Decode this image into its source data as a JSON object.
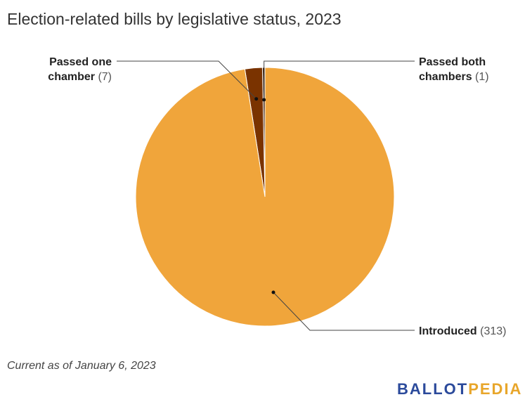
{
  "title": "Election-related bills by legislative status, 2023",
  "footnote": "Current as of January 6, 2023",
  "logo": {
    "part1": "BALLOT",
    "part2": "PEDIA"
  },
  "colors": {
    "introduced": "#f0a53b",
    "passed_one": "#7a3300",
    "passed_both": "#3d1a00"
  },
  "chart_data": {
    "type": "pie",
    "slices": [
      {
        "label": "Introduced",
        "value": 313,
        "display": "(313)",
        "color": "#f0a53b"
      },
      {
        "label": "Passed one chamber",
        "lines": [
          "Passed one",
          "chamber"
        ],
        "value": 7,
        "display": "(7)",
        "color": "#7a3300"
      },
      {
        "label": "Passed both chambers",
        "lines": [
          "Passed both",
          "chambers"
        ],
        "value": 1,
        "display": "(1)",
        "color": "#3d1a00"
      }
    ]
  }
}
